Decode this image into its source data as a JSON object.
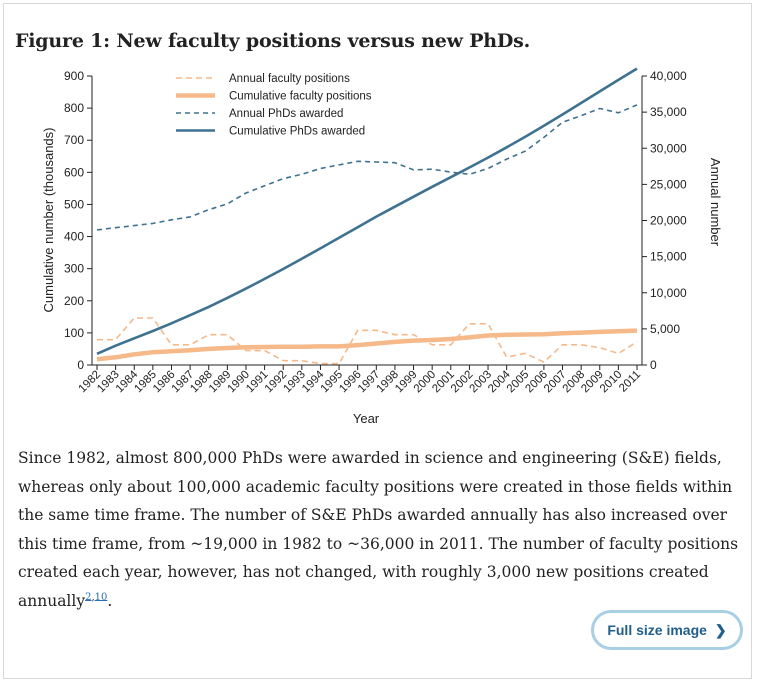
{
  "figure": {
    "title": "Figure 1: New faculty positions versus new PhDs."
  },
  "chart_data": {
    "type": "line",
    "title": "",
    "xlabel": "Year",
    "ylabel_left": "Cumulative number (thousands)",
    "ylabel_right": "Annual number",
    "ylim_left": [
      0,
      900
    ],
    "ylim_right": [
      0,
      40000
    ],
    "yticks_left": [
      "0",
      "100",
      "200",
      "300",
      "400",
      "500",
      "600",
      "700",
      "800",
      "900"
    ],
    "yticks_right": [
      "0",
      "5,000",
      "10,000",
      "15,000",
      "20,000",
      "25,000",
      "30,000",
      "35,000",
      "40,000"
    ],
    "categories": [
      "1982",
      "1983",
      "1984",
      "1985",
      "1986",
      "1987",
      "1988",
      "1989",
      "1990",
      "1991",
      "1992",
      "1993",
      "1994",
      "1995",
      "1996",
      "1997",
      "1998",
      "1999",
      "2000",
      "2001",
      "2002",
      "2003",
      "2004",
      "2005",
      "2006",
      "2007",
      "2008",
      "2009",
      "2010",
      "2011"
    ],
    "series": [
      {
        "name": "Annual faculty positions",
        "axis": "right",
        "style": "dashed",
        "color": "#f5b98a",
        "values": [
          3500,
          3500,
          6500,
          6500,
          2800,
          2800,
          4200,
          4200,
          2000,
          2000,
          600,
          600,
          200,
          200,
          4800,
          4800,
          4200,
          4200,
          2800,
          2800,
          5700,
          5700,
          1100,
          1600,
          400,
          2800,
          2800,
          2400,
          1600,
          3200
        ]
      },
      {
        "name": "Cumulative faculty positions",
        "axis": "left",
        "style": "solid-thick",
        "color": "#f5b98a",
        "values": [
          18,
          24,
          33,
          40,
          43,
          46,
          50,
          53,
          55,
          56,
          57,
          57,
          58,
          58,
          62,
          67,
          72,
          76,
          78,
          81,
          86,
          92,
          94,
          95,
          96,
          99,
          101,
          103,
          105,
          107
        ]
      },
      {
        "name": "Annual PhDs awarded",
        "axis": "right",
        "style": "dashed-dotted",
        "color": "#3e7290",
        "values": [
          18700,
          19000,
          19300,
          19600,
          20100,
          20500,
          21500,
          22300,
          23800,
          24800,
          25800,
          26400,
          27200,
          27700,
          28200,
          28100,
          28000,
          27000,
          27100,
          26700,
          26400,
          27200,
          28500,
          29600,
          31500,
          33600,
          34500,
          35500,
          34900,
          36000
        ]
      },
      {
        "name": "Cumulative PhDs awarded",
        "axis": "left",
        "style": "solid",
        "color": "#3e7290",
        "values": [
          35,
          60,
          83,
          106,
          130,
          155,
          181,
          209,
          238,
          268,
          299,
          331,
          363,
          396,
          429,
          462,
          493,
          524,
          555,
          585,
          615,
          646,
          678,
          711,
          745,
          780,
          816,
          852,
          888,
          923
        ]
      }
    ],
    "legend_position": "top-left"
  },
  "caption": {
    "text": "Since 1982, almost 800,000 PhDs were awarded in science and engineering (S&E) fields, whereas only about 100,000 academic faculty positions were created in those fields within the same time frame. The number of S&E PhDs awarded annually has also increased over this time frame, from ~19,000 in 1982 to ~36,000 in 2011. The number of faculty positions created each year, however, has not changed, with roughly 3,000 new positions created annually",
    "ref1": "2",
    "ref_sep": ",",
    "ref2": "10",
    "end": "."
  },
  "buttons": {
    "full_size_label": "Full size image",
    "full_size_chevron": "❯"
  }
}
